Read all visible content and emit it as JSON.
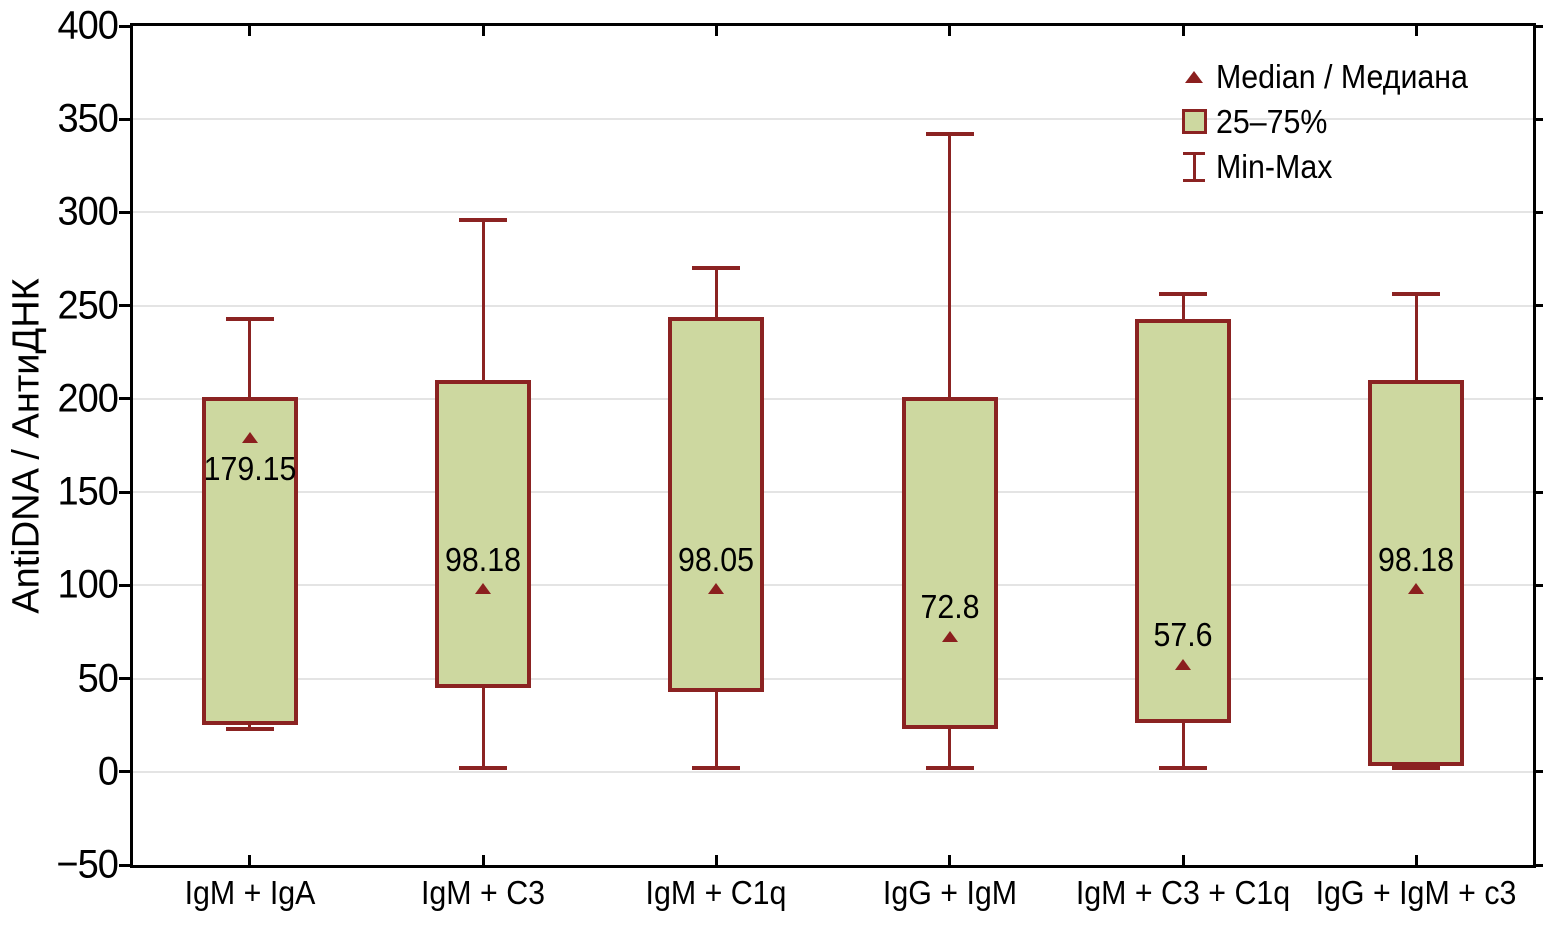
{
  "chart_data": {
    "type": "box",
    "title": "",
    "ylabel": "AntiDNA / АнтиДНК",
    "xlabel": "",
    "ylim": [
      -50,
      400
    ],
    "ytick_step": 50,
    "grid": "horizontal",
    "legend_position": "top-right",
    "yticks": [
      {
        "value": 400,
        "label": "400"
      },
      {
        "value": 350,
        "label": "350"
      },
      {
        "value": 300,
        "label": "300"
      },
      {
        "value": 250,
        "label": "250"
      },
      {
        "value": 200,
        "label": "200"
      },
      {
        "value": 150,
        "label": "150"
      },
      {
        "value": 100,
        "label": "100"
      },
      {
        "value": 50,
        "label": "50"
      },
      {
        "value": 0,
        "label": "0"
      },
      {
        "value": -50,
        "label": "−50"
      }
    ],
    "categories": [
      "IgM + IgA",
      "IgM + C3",
      "IgM + C1q",
      "IgG + IgM",
      "IgM + C3 + C1q",
      "IgG + IgM + c3"
    ],
    "series": [
      {
        "category": "IgM + IgA",
        "min": 23,
        "q1": 26,
        "median": 179.15,
        "q3": 200,
        "max": 243,
        "median_label": "179.15",
        "median_label_side": "below"
      },
      {
        "category": "IgM + C3",
        "min": 2,
        "q1": 46,
        "median": 98.18,
        "q3": 209,
        "max": 296,
        "median_label": "98.18",
        "median_label_side": "above"
      },
      {
        "category": "IgM + C1q",
        "min": 2,
        "q1": 44,
        "median": 98.05,
        "q3": 243,
        "max": 270,
        "median_label": "98.05",
        "median_label_side": "above"
      },
      {
        "category": "IgG + IgM",
        "min": 2,
        "q1": 24,
        "median": 72.8,
        "q3": 200,
        "max": 342,
        "median_label": "72.8",
        "median_label_side": "above"
      },
      {
        "category": "IgM + C3 + C1q",
        "min": 2,
        "q1": 27,
        "median": 57.6,
        "q3": 242,
        "max": 256,
        "median_label": "57.6",
        "median_label_side": "above"
      },
      {
        "category": "IgG + IgM + c3",
        "min": 2,
        "q1": 4,
        "median": 98.18,
        "q3": 209,
        "max": 256,
        "median_label": "98.18",
        "median_label_side": "above"
      }
    ],
    "legend": [
      {
        "marker": "triangle",
        "label": "Median / Медиана"
      },
      {
        "marker": "box",
        "label": "25–75%"
      },
      {
        "marker": "whisker",
        "label": "Min-Max"
      }
    ],
    "colors": {
      "box_fill": "#cdd8a0",
      "box_border": "#8b2322",
      "whisker": "#8b2322",
      "median_marker": "#8b1f1e",
      "gridline": "#e4e4e4",
      "axis": "#000000",
      "text": "#000000",
      "background": "#ffffff"
    }
  }
}
